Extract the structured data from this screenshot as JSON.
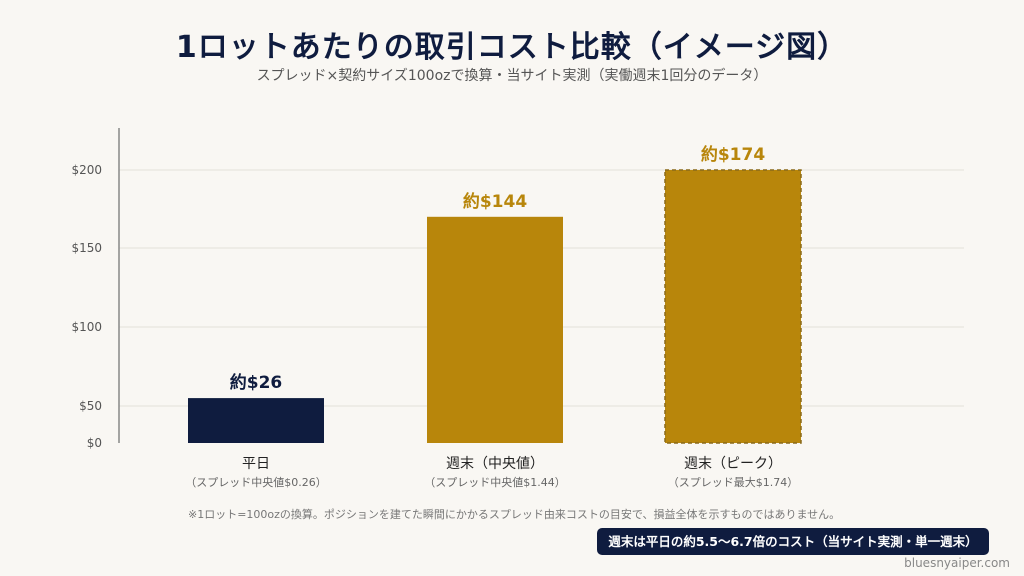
{
  "chart_data": {
    "type": "bar",
    "title": "1ロットあたりの取引コスト比較（イメージ図）",
    "subtitle": "スプレッド×契約サイズ100ozで換算・当サイト実測（実働週末1回分のデータ）",
    "ylim": [
      0,
      200
    ],
    "yticks": [
      0,
      50,
      100,
      150,
      200
    ],
    "ytick_labels": [
      "$0",
      "$50",
      "$100",
      "$150",
      "$200"
    ],
    "grid": true,
    "categories": [
      {
        "label": "平日",
        "sublabel": "（スプレッド中央値$0.26）",
        "value": 26,
        "data_label": "約$26",
        "color": "#0f1c3f",
        "style": "solid"
      },
      {
        "label": "週末（中央値）",
        "sublabel": "（スプレッド中央値$1.44）",
        "value": 144,
        "data_label": "約$144",
        "color": "#b8860b",
        "style": "solid"
      },
      {
        "label": "週末（ピーク）",
        "sublabel": "（スプレッド最大$1.74）",
        "value": 174,
        "data_label": "約$174",
        "color": "#b8860b",
        "style": "dashed"
      }
    ],
    "note": "※1ロット=100ozの換算。ポジションを建てた瞬間にかかるスプレッド由来コストの目安で、損益全体を示すものではありません。",
    "callout": "週末は平日の約5.5〜6.7倍のコスト（当サイト実測・単一週末）",
    "watermark": "bluesnyaiper.com"
  }
}
